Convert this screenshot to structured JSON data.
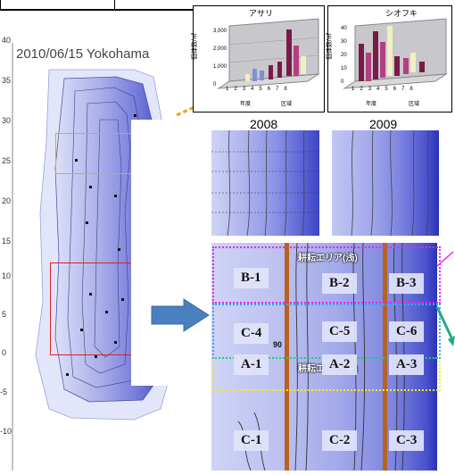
{
  "map": {
    "title": "2010/06/15 Yokohama",
    "y_ticks": [
      "40",
      "35",
      "30",
      "25",
      "20",
      "15",
      "10",
      "5",
      "0",
      "-5",
      "-10"
    ]
  },
  "insets": {
    "asari": {
      "title": "アサリ",
      "ylabel": "個体数/㎡",
      "y_ticks": [
        "3,000",
        "2,000",
        "1,000",
        "0"
      ],
      "x_labels": [
        "1",
        "2",
        "3",
        "4",
        "5",
        "6",
        "7",
        "8"
      ],
      "x_axis_a": "年度",
      "x_axis_b": "区域"
    },
    "shiofuki": {
      "title": "シオフキ",
      "ylabel": "個体数/㎡",
      "y_ticks": [
        "40",
        "30",
        "20",
        "10",
        "0"
      ],
      "x_labels": [
        "1",
        "2",
        "3",
        "4",
        "5",
        "6",
        "7",
        "8"
      ],
      "x_axis_a": "年度",
      "x_axis_b": "区域"
    }
  },
  "years": {
    "left": "2008",
    "right": "2009"
  },
  "zones": {
    "area_shallow": "耕耘エリア(浅)",
    "area_deep": "耕耘エリア(深)",
    "labels": [
      "B-1",
      "B-2",
      "B-3",
      "C-4",
      "C-5",
      "C-6",
      "A-1",
      "A-2",
      "A-3",
      "C-1",
      "C-2",
      "C-3"
    ],
    "contour_90": "90"
  },
  "colors": {
    "orange_box": "#f0a020",
    "red_box": "#e02020",
    "magenta": "#ee22ee",
    "cyan": "#33aaee",
    "green": "#22cc77",
    "yellow": "#eeee22",
    "arrow_blue": "#4a7fc0",
    "rope": "#b8621e"
  }
}
